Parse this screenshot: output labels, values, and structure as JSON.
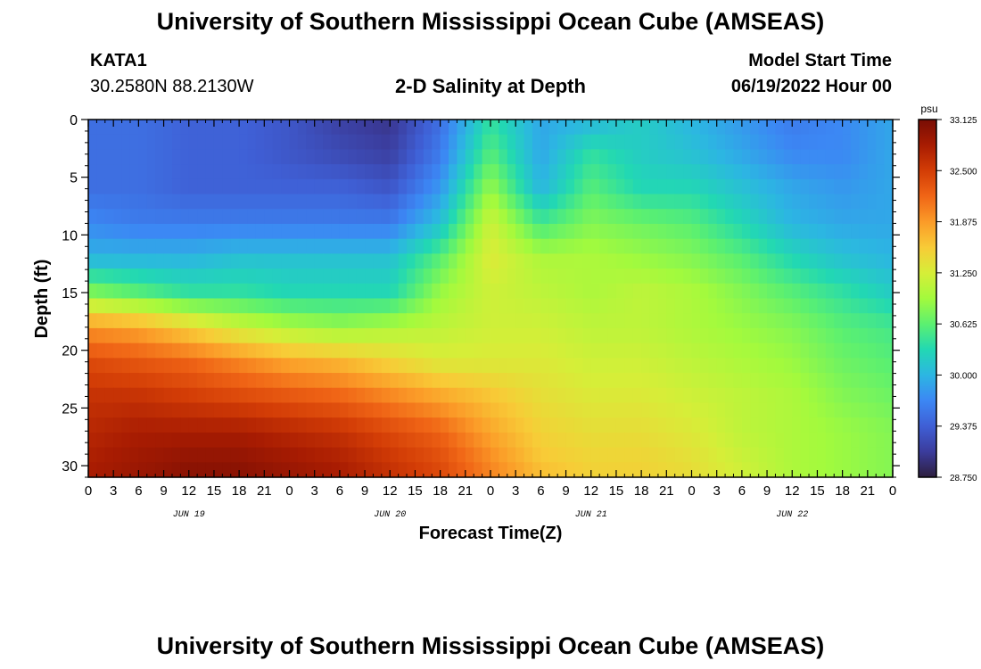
{
  "page_title": "University of Southern Mississippi Ocean Cube (AMSEAS)",
  "footer_title": "University of Southern Mississippi Ocean Cube (AMSEAS)",
  "station": {
    "name": "KATA1",
    "coordinates": "30.2580N  88.2130W"
  },
  "model_start": {
    "label": "Model Start Time",
    "value": "06/19/2022 Hour 00"
  },
  "chart_data": {
    "type": "heatmap",
    "title": "2-D Salinity at Depth",
    "xlabel": "Forecast Time(Z)",
    "ylabel": "Depth (ft)",
    "x_range_hours": [
      0,
      96
    ],
    "ylim": [
      0,
      31
    ],
    "y_inverted": true,
    "x_tick_labels": [
      "0",
      "3",
      "6",
      "9",
      "12",
      "15",
      "18",
      "21",
      "0",
      "3",
      "6",
      "9",
      "12",
      "15",
      "18",
      "21",
      "0",
      "3",
      "6",
      "9",
      "12",
      "15",
      "18",
      "21",
      "0",
      "3",
      "6",
      "9",
      "12",
      "15",
      "18",
      "21",
      "0"
    ],
    "y_tick_labels": [
      "0",
      "5",
      "10",
      "15",
      "20",
      "25",
      "30"
    ],
    "y_tick_values": [
      0,
      5,
      10,
      15,
      20,
      25,
      30
    ],
    "day_labels": [
      {
        "text": "JUN 19",
        "hour": 12
      },
      {
        "text": "JUN 20",
        "hour": 36
      },
      {
        "text": "JUN 21",
        "hour": 60
      },
      {
        "text": "JUN 22",
        "hour": 84
      }
    ],
    "colorbar": {
      "unit": "psu",
      "min": 28.75,
      "max": 33.125,
      "tick_labels": [
        "33.125",
        "32.500",
        "31.875",
        "31.250",
        "30.625",
        "30.000",
        "29.375",
        "28.750"
      ],
      "tick_values": [
        33.125,
        32.5,
        31.875,
        31.25,
        30.625,
        30.0,
        29.375,
        28.75
      ],
      "colors": [
        "#2d1e3e",
        "#3b3c9c",
        "#3f5fd5",
        "#3c87f4",
        "#2cb6e2",
        "#22d8b3",
        "#5cf070",
        "#a3fa3d",
        "#d6ee38",
        "#f8cb37",
        "#fb9b28",
        "#f06516",
        "#d33d06",
        "#a81c02",
        "#780d04"
      ]
    },
    "salinity_grid": {
      "depths_ft": [
        0,
        3,
        6,
        9,
        12,
        15,
        18,
        21,
        24,
        27,
        30,
        31
      ],
      "hours": [
        0,
        6,
        12,
        18,
        24,
        30,
        36,
        42,
        48,
        54,
        60,
        66,
        72,
        78,
        84,
        90,
        96
      ],
      "rows": [
        [
          29.5,
          29.5,
          29.4,
          29.4,
          29.3,
          29.1,
          29.0,
          29.5,
          30.4,
          29.9,
          30.0,
          30.2,
          30.0,
          29.8,
          29.6,
          29.7,
          29.9
        ],
        [
          29.5,
          29.5,
          29.4,
          29.4,
          29.3,
          29.2,
          29.1,
          29.6,
          30.6,
          29.9,
          30.4,
          30.2,
          30.1,
          29.9,
          29.7,
          29.7,
          29.9
        ],
        [
          29.5,
          29.5,
          29.4,
          29.4,
          29.4,
          29.4,
          29.3,
          29.8,
          30.9,
          30.0,
          30.6,
          30.3,
          30.3,
          30.1,
          29.9,
          29.8,
          29.9
        ],
        [
          29.7,
          29.6,
          29.6,
          29.6,
          29.6,
          29.6,
          29.6,
          30.1,
          31.2,
          30.5,
          30.8,
          30.7,
          30.6,
          30.3,
          30.0,
          29.9,
          29.9
        ],
        [
          30.0,
          30.0,
          30.0,
          30.1,
          30.1,
          30.1,
          30.1,
          30.6,
          31.3,
          31.0,
          31.0,
          30.9,
          30.8,
          30.6,
          30.3,
          30.1,
          30.0
        ],
        [
          30.8,
          30.6,
          30.4,
          30.4,
          30.3,
          30.3,
          30.3,
          30.9,
          31.2,
          31.1,
          31.0,
          31.1,
          31.0,
          30.8,
          30.6,
          30.4,
          30.2
        ],
        [
          31.9,
          31.8,
          31.5,
          31.2,
          31.0,
          30.9,
          31.0,
          31.1,
          31.2,
          31.2,
          31.1,
          31.1,
          31.0,
          30.9,
          30.8,
          30.6,
          30.5
        ],
        [
          32.4,
          32.3,
          32.2,
          32.0,
          31.8,
          31.7,
          31.5,
          31.3,
          31.3,
          31.3,
          31.2,
          31.2,
          31.1,
          31.0,
          30.9,
          30.7,
          30.6
        ],
        [
          32.6,
          32.6,
          32.5,
          32.4,
          32.3,
          32.2,
          32.0,
          31.8,
          31.6,
          31.4,
          31.3,
          31.3,
          31.2,
          31.1,
          31.0,
          30.8,
          30.7
        ],
        [
          32.7,
          32.8,
          32.8,
          32.8,
          32.7,
          32.6,
          32.4,
          32.2,
          31.8,
          31.5,
          31.4,
          31.4,
          31.3,
          31.1,
          31.0,
          30.9,
          30.8
        ],
        [
          32.8,
          32.9,
          33.0,
          33.0,
          32.9,
          32.8,
          32.6,
          32.4,
          32.0,
          31.6,
          31.5,
          31.5,
          31.4,
          31.2,
          31.0,
          30.9,
          30.8
        ],
        [
          32.8,
          32.9,
          33.0,
          33.0,
          32.9,
          32.8,
          32.6,
          32.4,
          32.0,
          31.7,
          31.5,
          31.5,
          31.4,
          31.2,
          31.0,
          30.9,
          30.8
        ]
      ]
    }
  }
}
